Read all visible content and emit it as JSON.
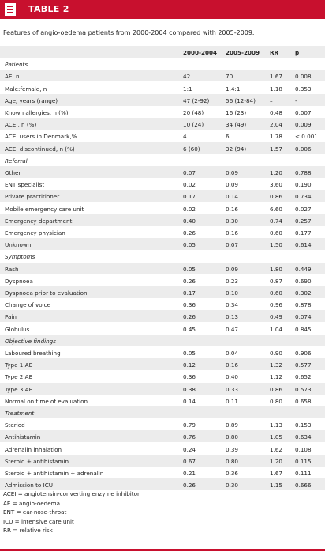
{
  "header": {
    "title": "TABLE 2"
  },
  "caption": "Features of angio-oedema patients from 2000-2004 compared with 2005-2009.",
  "table": {
    "columns": [
      "2000-2004",
      "2005-2009",
      "RR",
      "p"
    ],
    "sections": [
      {
        "title": "Patients",
        "rows": [
          [
            "AE, n",
            "42",
            "70",
            "1.67",
            "0.008"
          ],
          [
            "Male:female, n",
            "1:1",
            "1.4:1",
            "1.18",
            "0.353"
          ],
          [
            "Age, years (range)",
            "47 (2-92)",
            "56 (12-84)",
            "–",
            "-"
          ],
          [
            "Known allergies, n (%)",
            "20 (48)",
            "16 (23)",
            "0.48",
            "0.007"
          ],
          [
            "ACEI, n (%)",
            "10 (24)",
            "34 (49)",
            "2.04",
            "0.009"
          ],
          [
            "ACEI users in Denmark,%",
            "4",
            "6",
            "1.78",
            "< 0.001"
          ],
          [
            "ACEI discontinued, n (%)",
            "6 (60)",
            "32 (94)",
            "1.57",
            "0.006"
          ]
        ]
      },
      {
        "title": "Referral",
        "rows": [
          [
            "Other",
            "0.07",
            "0.09",
            "1.20",
            "0.788"
          ],
          [
            "ENT specialist",
            "0.02",
            "0.09",
            "3.60",
            "0.190"
          ],
          [
            "Private practitioner",
            "0.17",
            "0.14",
            "0.86",
            "0.734"
          ],
          [
            "Mobile emergency care unit",
            "0.02",
            "0.16",
            "6.60",
            "0.027"
          ],
          [
            "Emergency department",
            "0.40",
            "0.30",
            "0.74",
            "0.257"
          ],
          [
            "Emergency physician",
            "0.26",
            "0.16",
            "0.60",
            "0.177"
          ],
          [
            "Unknown",
            "0.05",
            "0.07",
            "1.50",
            "0.614"
          ]
        ]
      },
      {
        "title": "Symptoms",
        "rows": [
          [
            "Rash",
            "0.05",
            "0.09",
            "1.80",
            "0.449"
          ],
          [
            "Dyspnoea",
            "0.26",
            "0.23",
            "0.87",
            "0.690"
          ],
          [
            "Dyspnoea prior to evaluation",
            "0.17",
            "0.10",
            "0.60",
            "0.302"
          ],
          [
            "Change of voice",
            "0.36",
            "0.34",
            "0.96",
            "0.878"
          ],
          [
            "Pain",
            "0.26",
            "0.13",
            "0.49",
            "0.074"
          ],
          [
            "Globulus",
            "0.45",
            "0.47",
            "1.04",
            "0.845"
          ]
        ]
      },
      {
        "title": "Objective findings",
        "rows": [
          [
            "Laboured breathing",
            "0.05",
            "0.04",
            "0.90",
            "0.906"
          ],
          [
            "Type 1 AE",
            "0.12",
            "0.16",
            "1.32",
            "0.577"
          ],
          [
            "Type 2 AE",
            "0.36",
            "0.40",
            "1.12",
            "0.652"
          ],
          [
            "Type 3 AE",
            "0.38",
            "0.33",
            "0.86",
            "0.573"
          ],
          [
            "Normal on time of evaluation",
            "0.14",
            "0.11",
            "0.80",
            "0.658"
          ]
        ]
      },
      {
        "title": "Treatment",
        "rows": [
          [
            "Steriod",
            "0.79",
            "0.89",
            "1.13",
            "0.153"
          ],
          [
            "Antihistamin",
            "0.76",
            "0.80",
            "1.05",
            "0.634"
          ],
          [
            "Adrenalin inhalation",
            "0.24",
            "0.39",
            "1.62",
            "0.108"
          ],
          [
            "Steroid + antihistamin",
            "0.67",
            "0.80",
            "1.20",
            "0.115"
          ],
          [
            "Steroid + antihistamin + adrenalin",
            "0.21",
            "0.36",
            "1.67",
            "0.111"
          ],
          [
            "Admission to ICU",
            "0.26",
            "0.30",
            "1.15",
            "0.666"
          ]
        ]
      }
    ]
  },
  "footnotes": [
    "ACEI = angiotensin-converting enzyme inhibitor",
    "AE = angio-oedema",
    "ENT = ear-nose-throat",
    "ICU = intensive care unit",
    "RR = relative risk"
  ]
}
